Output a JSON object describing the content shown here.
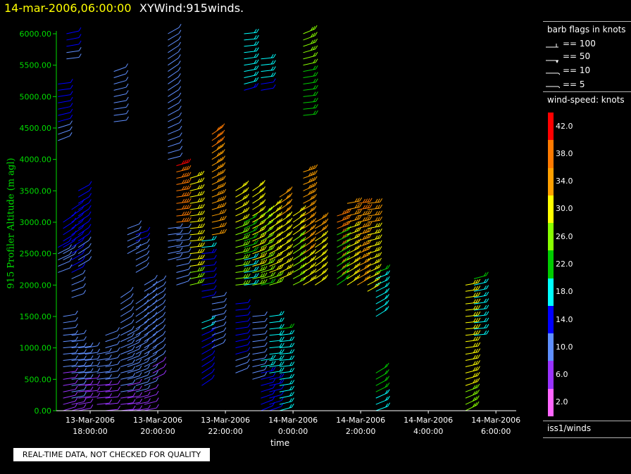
{
  "title": {
    "datetime": "14-mar-2006,06:00:00",
    "product": "XYWind:915winds."
  },
  "footer_notice": "REAL-TIME DATA, NOT CHECKED FOR QUALITY",
  "legend": {
    "barb_title": "barb flags in knots",
    "barb_items": [
      {
        "label": "== 100"
      },
      {
        "label": "== 50"
      },
      {
        "label": "== 10"
      },
      {
        "label": "== 5"
      }
    ],
    "colorbar_title": "wind-speed: knots",
    "colorbar_labels": [
      "42.0",
      "38.0",
      "34.0",
      "30.0",
      "26.0",
      "22.0",
      "18.0",
      "14.0",
      "10.0",
      "6.0",
      "2.0"
    ],
    "colorbar_colors": [
      "#ff0000",
      "#ff7a00",
      "#ffa000",
      "#ffff00",
      "#88ff00",
      "#00cc00",
      "#00ffff",
      "#0000ff",
      "#5f8fff",
      "#9933ff",
      "#ff66ff"
    ],
    "source": "iss1/winds"
  },
  "colors": {
    "title_date": "#ffff00",
    "axis": "#00dd00"
  },
  "chart_data": {
    "type": "scatter",
    "ylabel": "915 Profiler Altitude (m agl)",
    "xlabel": "time",
    "ylim": [
      0,
      6000
    ],
    "ytick_labels": [
      "0.00",
      "500.00",
      "1000.00",
      "1500.00",
      "2000.00",
      "2500.00",
      "3000.00",
      "3500.00",
      "4000.00",
      "4500.00",
      "5000.00",
      "5500.00",
      "6000.00"
    ],
    "ytick_values": [
      0,
      500,
      1000,
      1500,
      2000,
      2500,
      3000,
      3500,
      4000,
      4500,
      5000,
      5500,
      6000
    ],
    "xlim": [
      "13-Mar-2006 17:00",
      "14-Mar-2006 06:00"
    ],
    "xticks": [
      {
        "label1": "13-Mar-2006",
        "label2": "18:00:00",
        "hours": 1
      },
      {
        "label1": "13-Mar-2006",
        "label2": "20:00:00",
        "hours": 3
      },
      {
        "label1": "13-Mar-2006",
        "label2": "22:00:00",
        "hours": 5
      },
      {
        "label1": "14-Mar-2006",
        "label2": "0:00:00",
        "hours": 7
      },
      {
        "label1": "14-Mar-2006",
        "label2": "2:00:00",
        "hours": 9
      },
      {
        "label1": "14-Mar-2006",
        "label2": "4:00:00",
        "hours": 11
      },
      {
        "label1": "14-Mar-2006",
        "label2": "6:00:00",
        "hours": 13
      }
    ],
    "profiles": [
      {
        "hours": 0.05,
        "segments": [
          [
            2200,
            2600,
            8
          ],
          [
            4300,
            5200,
            10
          ]
        ]
      },
      {
        "hours": 0.2,
        "segments": [
          [
            0,
            1500,
            5
          ],
          [
            2400,
            3000,
            10
          ]
        ]
      },
      {
        "hours": 0.3,
        "segments": [
          [
            5600,
            6000,
            10
          ]
        ]
      },
      {
        "hours": 0.45,
        "segments": [
          [
            0,
            1200,
            6
          ],
          [
            1800,
            3200,
            10
          ]
        ]
      },
      {
        "hours": 0.65,
        "segments": [
          [
            0,
            1000,
            5
          ],
          [
            2300,
            3500,
            10
          ]
        ]
      },
      {
        "hours": 0.85,
        "segments": [
          [
            200,
            1000,
            5
          ]
        ]
      },
      {
        "hours": 1.2,
        "segments": [
          [
            100,
            900,
            5
          ]
        ]
      },
      {
        "hours": 1.45,
        "segments": [
          [
            0,
            1200,
            5
          ]
        ]
      },
      {
        "hours": 1.7,
        "segments": [
          [
            4600,
            5400,
            7
          ]
        ]
      },
      {
        "hours": 1.9,
        "segments": [
          [
            0,
            1800,
            6
          ]
        ]
      },
      {
        "hours": 2.1,
        "segments": [
          [
            0,
            1200,
            5
          ],
          [
            2500,
            2900,
            7
          ]
        ]
      },
      {
        "hours": 2.35,
        "segments": [
          [
            0,
            1700,
            6
          ],
          [
            2200,
            2800,
            8
          ]
        ]
      },
      {
        "hours": 2.6,
        "segments": [
          [
            0,
            2000,
            6
          ]
        ]
      },
      {
        "hours": 2.85,
        "segments": [
          [
            500,
            2000,
            6
          ]
        ]
      },
      {
        "hours": 3.3,
        "segments": [
          [
            2400,
            2900,
            7
          ],
          [
            4000,
            6000,
            7
          ]
        ]
      },
      {
        "hours": 3.55,
        "segments": [
          [
            2000,
            2900,
            7
          ],
          [
            3000,
            3900,
            38
          ]
        ]
      },
      {
        "hours": 3.95,
        "segments": [
          [
            2000,
            3700,
            28
          ]
        ]
      },
      {
        "hours": 4.3,
        "segments": [
          [
            400,
            1400,
            12
          ],
          [
            1800,
            2700,
            12
          ]
        ]
      },
      {
        "hours": 4.6,
        "segments": [
          [
            1000,
            1800,
            7
          ],
          [
            2800,
            4400,
            34
          ]
        ]
      },
      {
        "hours": 5.3,
        "segments": [
          [
            600,
            1700,
            10
          ],
          [
            2000,
            3500,
            26
          ]
        ]
      },
      {
        "hours": 5.55,
        "segments": [
          [
            2000,
            3000,
            18
          ],
          [
            5100,
            6000,
            15
          ]
        ]
      },
      {
        "hours": 5.8,
        "segments": [
          [
            500,
            1500,
            7
          ],
          [
            2000,
            3500,
            28
          ]
        ]
      },
      {
        "hours": 6.05,
        "segments": [
          [
            0,
            800,
            12
          ],
          [
            2000,
            3100,
            24
          ],
          [
            5100,
            5600,
            14
          ]
        ]
      },
      {
        "hours": 6.3,
        "segments": [
          [
            0,
            1500,
            14
          ],
          [
            2000,
            3200,
            28
          ]
        ]
      },
      {
        "hours": 6.6,
        "segments": [
          [
            0,
            1300,
            16
          ],
          [
            2100,
            3400,
            30
          ]
        ]
      },
      {
        "hours": 7.0,
        "segments": [
          [
            2000,
            3100,
            26
          ]
        ]
      },
      {
        "hours": 7.3,
        "segments": [
          [
            2000,
            3800,
            32
          ],
          [
            4700,
            6000,
            22
          ]
        ]
      },
      {
        "hours": 7.65,
        "segments": [
          [
            2000,
            3000,
            30
          ]
        ]
      },
      {
        "hours": 8.3,
        "segments": [
          [
            2100,
            3100,
            36
          ],
          [
            2000,
            2800,
            20
          ]
        ]
      },
      {
        "hours": 8.6,
        "segments": [
          [
            2000,
            3300,
            30
          ]
        ]
      },
      {
        "hours": 8.9,
        "segments": [
          [
            2000,
            3300,
            34
          ]
        ]
      },
      {
        "hours": 9.2,
        "segments": [
          [
            1900,
            3300,
            30
          ]
        ]
      },
      {
        "hours": 9.45,
        "segments": [
          [
            0,
            600,
            18
          ],
          [
            1500,
            2200,
            16
          ]
        ]
      },
      {
        "hours": 12.1,
        "segments": [
          [
            0,
            2000,
            28
          ]
        ]
      },
      {
        "hours": 12.35,
        "segments": [
          [
            1200,
            2100,
            16
          ]
        ]
      }
    ]
  }
}
